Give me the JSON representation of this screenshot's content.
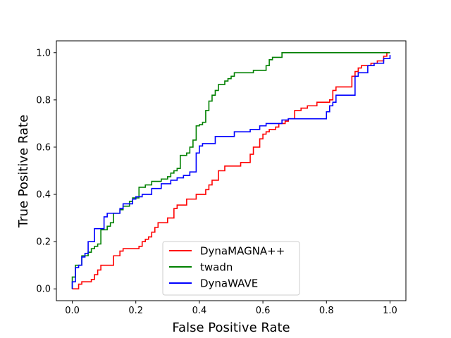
{
  "chart_data": {
    "type": "line",
    "title": "",
    "xlabel": "False Positive Rate",
    "ylabel": "True Positive Rate",
    "xlim": [
      -0.05,
      1.05
    ],
    "ylim": [
      -0.05,
      1.05
    ],
    "x_ticks": [
      0.0,
      0.2,
      0.4,
      0.6,
      0.8,
      1.0
    ],
    "y_ticks": [
      0.0,
      0.2,
      0.4,
      0.6,
      0.8,
      1.0
    ],
    "x_tick_labels": [
      "0.0",
      "0.2",
      "0.4",
      "0.6",
      "0.8",
      "1.0"
    ],
    "y_tick_labels": [
      "0.0",
      "0.2",
      "0.4",
      "0.6",
      "0.8",
      "1.0"
    ],
    "grid": false,
    "legend_position": "bottom-center",
    "series": [
      {
        "name": "DynaMAGNA++",
        "color": "#ff0000",
        "points": [
          [
            0.0,
            0.0
          ],
          [
            0.02,
            0.0
          ],
          [
            0.02,
            0.02
          ],
          [
            0.03,
            0.02
          ],
          [
            0.03,
            0.03
          ],
          [
            0.06,
            0.03
          ],
          [
            0.06,
            0.04
          ],
          [
            0.07,
            0.04
          ],
          [
            0.07,
            0.06
          ],
          [
            0.08,
            0.06
          ],
          [
            0.08,
            0.08
          ],
          [
            0.09,
            0.08
          ],
          [
            0.09,
            0.1
          ],
          [
            0.13,
            0.1
          ],
          [
            0.13,
            0.14
          ],
          [
            0.15,
            0.14
          ],
          [
            0.15,
            0.16
          ],
          [
            0.16,
            0.16
          ],
          [
            0.16,
            0.17
          ],
          [
            0.21,
            0.17
          ],
          [
            0.21,
            0.18
          ],
          [
            0.22,
            0.18
          ],
          [
            0.22,
            0.2
          ],
          [
            0.23,
            0.2
          ],
          [
            0.23,
            0.21
          ],
          [
            0.24,
            0.21
          ],
          [
            0.24,
            0.22
          ],
          [
            0.25,
            0.22
          ],
          [
            0.25,
            0.24
          ],
          [
            0.26,
            0.24
          ],
          [
            0.26,
            0.26
          ],
          [
            0.27,
            0.26
          ],
          [
            0.27,
            0.28
          ],
          [
            0.3,
            0.28
          ],
          [
            0.3,
            0.3
          ],
          [
            0.32,
            0.3
          ],
          [
            0.32,
            0.34
          ],
          [
            0.33,
            0.34
          ],
          [
            0.33,
            0.355
          ],
          [
            0.36,
            0.355
          ],
          [
            0.36,
            0.38
          ],
          [
            0.39,
            0.38
          ],
          [
            0.39,
            0.4
          ],
          [
            0.42,
            0.4
          ],
          [
            0.42,
            0.42
          ],
          [
            0.43,
            0.42
          ],
          [
            0.43,
            0.44
          ],
          [
            0.44,
            0.44
          ],
          [
            0.44,
            0.46
          ],
          [
            0.46,
            0.46
          ],
          [
            0.46,
            0.5
          ],
          [
            0.48,
            0.5
          ],
          [
            0.48,
            0.52
          ],
          [
            0.53,
            0.52
          ],
          [
            0.53,
            0.535
          ],
          [
            0.56,
            0.535
          ],
          [
            0.56,
            0.57
          ],
          [
            0.57,
            0.57
          ],
          [
            0.57,
            0.6
          ],
          [
            0.59,
            0.6
          ],
          [
            0.59,
            0.635
          ],
          [
            0.6,
            0.635
          ],
          [
            0.6,
            0.655
          ],
          [
            0.61,
            0.655
          ],
          [
            0.61,
            0.665
          ],
          [
            0.62,
            0.665
          ],
          [
            0.62,
            0.675
          ],
          [
            0.64,
            0.675
          ],
          [
            0.64,
            0.685
          ],
          [
            0.65,
            0.685
          ],
          [
            0.65,
            0.7
          ],
          [
            0.67,
            0.7
          ],
          [
            0.67,
            0.71
          ],
          [
            0.68,
            0.71
          ],
          [
            0.68,
            0.72
          ],
          [
            0.7,
            0.72
          ],
          [
            0.7,
            0.755
          ],
          [
            0.72,
            0.755
          ],
          [
            0.72,
            0.765
          ],
          [
            0.74,
            0.765
          ],
          [
            0.74,
            0.775
          ],
          [
            0.77,
            0.775
          ],
          [
            0.77,
            0.79
          ],
          [
            0.81,
            0.79
          ],
          [
            0.81,
            0.8
          ],
          [
            0.82,
            0.8
          ],
          [
            0.82,
            0.84
          ],
          [
            0.83,
            0.84
          ],
          [
            0.83,
            0.855
          ],
          [
            0.88,
            0.855
          ],
          [
            0.88,
            0.9
          ],
          [
            0.89,
            0.9
          ],
          [
            0.89,
            0.92
          ],
          [
            0.9,
            0.92
          ],
          [
            0.9,
            0.935
          ],
          [
            0.91,
            0.935
          ],
          [
            0.91,
            0.945
          ],
          [
            0.94,
            0.945
          ],
          [
            0.94,
            0.955
          ],
          [
            0.96,
            0.955
          ],
          [
            0.96,
            0.965
          ],
          [
            0.98,
            0.965
          ],
          [
            0.98,
            0.985
          ],
          [
            0.99,
            0.985
          ],
          [
            0.99,
            1.0
          ],
          [
            1.0,
            1.0
          ]
        ]
      },
      {
        "name": "twadn",
        "color": "#008000",
        "points": [
          [
            0.0,
            0.0
          ],
          [
            0.0,
            0.05
          ],
          [
            0.01,
            0.05
          ],
          [
            0.01,
            0.1
          ],
          [
            0.03,
            0.1
          ],
          [
            0.03,
            0.14
          ],
          [
            0.05,
            0.14
          ],
          [
            0.05,
            0.155
          ],
          [
            0.06,
            0.155
          ],
          [
            0.06,
            0.17
          ],
          [
            0.07,
            0.17
          ],
          [
            0.07,
            0.18
          ],
          [
            0.08,
            0.18
          ],
          [
            0.08,
            0.19
          ],
          [
            0.09,
            0.19
          ],
          [
            0.09,
            0.25
          ],
          [
            0.11,
            0.25
          ],
          [
            0.11,
            0.265
          ],
          [
            0.12,
            0.265
          ],
          [
            0.12,
            0.28
          ],
          [
            0.13,
            0.28
          ],
          [
            0.13,
            0.32
          ],
          [
            0.15,
            0.32
          ],
          [
            0.15,
            0.335
          ],
          [
            0.16,
            0.335
          ],
          [
            0.16,
            0.35
          ],
          [
            0.18,
            0.35
          ],
          [
            0.18,
            0.37
          ],
          [
            0.19,
            0.37
          ],
          [
            0.19,
            0.385
          ],
          [
            0.21,
            0.385
          ],
          [
            0.21,
            0.43
          ],
          [
            0.23,
            0.43
          ],
          [
            0.23,
            0.44
          ],
          [
            0.25,
            0.44
          ],
          [
            0.25,
            0.455
          ],
          [
            0.28,
            0.455
          ],
          [
            0.28,
            0.465
          ],
          [
            0.3,
            0.465
          ],
          [
            0.3,
            0.475
          ],
          [
            0.31,
            0.475
          ],
          [
            0.31,
            0.49
          ],
          [
            0.32,
            0.49
          ],
          [
            0.32,
            0.5
          ],
          [
            0.33,
            0.5
          ],
          [
            0.33,
            0.51
          ],
          [
            0.34,
            0.51
          ],
          [
            0.34,
            0.565
          ],
          [
            0.36,
            0.565
          ],
          [
            0.36,
            0.575
          ],
          [
            0.37,
            0.575
          ],
          [
            0.37,
            0.6
          ],
          [
            0.38,
            0.6
          ],
          [
            0.38,
            0.63
          ],
          [
            0.39,
            0.63
          ],
          [
            0.39,
            0.69
          ],
          [
            0.4,
            0.69
          ],
          [
            0.4,
            0.695
          ],
          [
            0.41,
            0.695
          ],
          [
            0.41,
            0.705
          ],
          [
            0.42,
            0.705
          ],
          [
            0.42,
            0.755
          ],
          [
            0.43,
            0.755
          ],
          [
            0.43,
            0.795
          ],
          [
            0.44,
            0.795
          ],
          [
            0.44,
            0.82
          ],
          [
            0.45,
            0.82
          ],
          [
            0.45,
            0.84
          ],
          [
            0.46,
            0.84
          ],
          [
            0.46,
            0.865
          ],
          [
            0.48,
            0.865
          ],
          [
            0.48,
            0.88
          ],
          [
            0.49,
            0.88
          ],
          [
            0.49,
            0.89
          ],
          [
            0.5,
            0.89
          ],
          [
            0.5,
            0.9
          ],
          [
            0.51,
            0.9
          ],
          [
            0.51,
            0.915
          ],
          [
            0.57,
            0.915
          ],
          [
            0.57,
            0.925
          ],
          [
            0.61,
            0.925
          ],
          [
            0.61,
            0.945
          ],
          [
            0.62,
            0.945
          ],
          [
            0.62,
            0.97
          ],
          [
            0.63,
            0.97
          ],
          [
            0.63,
            0.98
          ],
          [
            0.66,
            0.98
          ],
          [
            0.66,
            1.0
          ],
          [
            1.0,
            1.0
          ]
        ]
      },
      {
        "name": "DynaWAVE",
        "color": "#0000ff",
        "points": [
          [
            0.0,
            0.0
          ],
          [
            0.0,
            0.03
          ],
          [
            0.01,
            0.03
          ],
          [
            0.01,
            0.09
          ],
          [
            0.02,
            0.09
          ],
          [
            0.02,
            0.1
          ],
          [
            0.03,
            0.1
          ],
          [
            0.03,
            0.135
          ],
          [
            0.04,
            0.135
          ],
          [
            0.04,
            0.15
          ],
          [
            0.05,
            0.15
          ],
          [
            0.05,
            0.2
          ],
          [
            0.07,
            0.2
          ],
          [
            0.07,
            0.255
          ],
          [
            0.1,
            0.255
          ],
          [
            0.1,
            0.305
          ],
          [
            0.11,
            0.305
          ],
          [
            0.11,
            0.32
          ],
          [
            0.15,
            0.32
          ],
          [
            0.15,
            0.34
          ],
          [
            0.16,
            0.34
          ],
          [
            0.16,
            0.36
          ],
          [
            0.19,
            0.36
          ],
          [
            0.19,
            0.38
          ],
          [
            0.2,
            0.38
          ],
          [
            0.2,
            0.39
          ],
          [
            0.22,
            0.39
          ],
          [
            0.22,
            0.4
          ],
          [
            0.25,
            0.4
          ],
          [
            0.25,
            0.425
          ],
          [
            0.28,
            0.425
          ],
          [
            0.28,
            0.445
          ],
          [
            0.31,
            0.445
          ],
          [
            0.31,
            0.46
          ],
          [
            0.33,
            0.46
          ],
          [
            0.33,
            0.47
          ],
          [
            0.35,
            0.47
          ],
          [
            0.35,
            0.48
          ],
          [
            0.37,
            0.48
          ],
          [
            0.37,
            0.495
          ],
          [
            0.39,
            0.495
          ],
          [
            0.39,
            0.575
          ],
          [
            0.4,
            0.575
          ],
          [
            0.4,
            0.605
          ],
          [
            0.41,
            0.605
          ],
          [
            0.41,
            0.615
          ],
          [
            0.45,
            0.615
          ],
          [
            0.45,
            0.645
          ],
          [
            0.51,
            0.645
          ],
          [
            0.51,
            0.665
          ],
          [
            0.56,
            0.665
          ],
          [
            0.56,
            0.675
          ],
          [
            0.59,
            0.675
          ],
          [
            0.59,
            0.69
          ],
          [
            0.61,
            0.69
          ],
          [
            0.61,
            0.7
          ],
          [
            0.66,
            0.7
          ],
          [
            0.66,
            0.715
          ],
          [
            0.68,
            0.715
          ],
          [
            0.68,
            0.72
          ],
          [
            0.8,
            0.72
          ],
          [
            0.8,
            0.75
          ],
          [
            0.81,
            0.75
          ],
          [
            0.81,
            0.775
          ],
          [
            0.82,
            0.775
          ],
          [
            0.82,
            0.79
          ],
          [
            0.83,
            0.79
          ],
          [
            0.83,
            0.82
          ],
          [
            0.89,
            0.82
          ],
          [
            0.89,
            0.865
          ],
          [
            0.89,
            0.9
          ],
          [
            0.9,
            0.9
          ],
          [
            0.9,
            0.915
          ],
          [
            0.93,
            0.915
          ],
          [
            0.93,
            0.945
          ],
          [
            0.95,
            0.945
          ],
          [
            0.95,
            0.955
          ],
          [
            0.98,
            0.955
          ],
          [
            0.98,
            0.975
          ],
          [
            1.0,
            0.975
          ],
          [
            1.0,
            0.99
          ]
        ]
      }
    ]
  }
}
